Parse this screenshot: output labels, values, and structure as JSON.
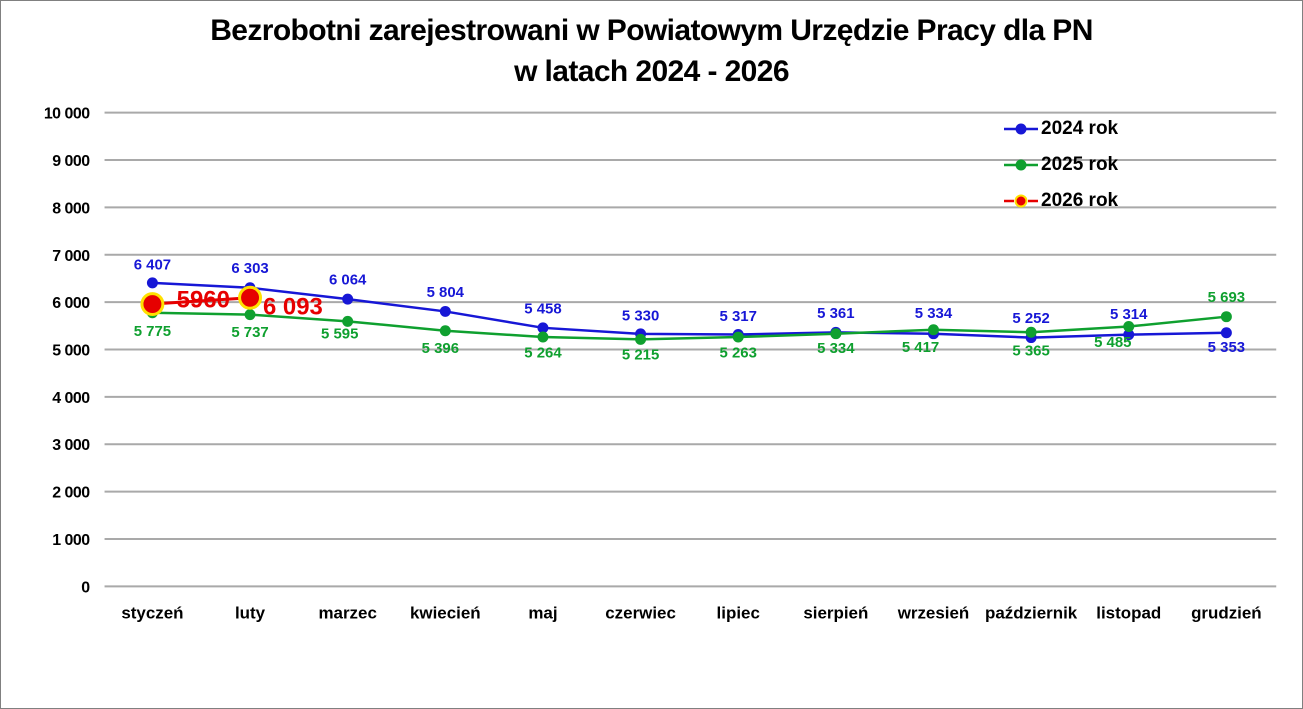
{
  "title": {
    "lines": [
      "Bezrobotni zarejestrowani w Powiatowym Urzędzie Pracy dla PN",
      "w latach 2024 - 2026"
    ]
  },
  "colors": {
    "background": "#ffffff",
    "border": "#808080",
    "gridline": "#a9a9a9",
    "axis_text": "#000000",
    "series_2024": "#1717d6",
    "series_2025": "#0fa02f",
    "series_2026": "#e60000",
    "marker_2026_ring": "#ffe100"
  },
  "chart_data": {
    "type": "line",
    "title": "Bezrobotni zarejestrowani w Powiatowym Urzędzie Pracy dla PN w latach 2024 - 2026",
    "categories": [
      "styczeń",
      "luty",
      "marzec",
      "kwiecień",
      "maj",
      "czerwiec",
      "lipiec",
      "sierpień",
      "wrzesień",
      "październik",
      "listopad",
      "grudzień"
    ],
    "xlabel": "",
    "ylabel": "",
    "grid": true,
    "legend_position": "top-right",
    "y_axis": {
      "min": 0,
      "max": 10000,
      "step": 1000,
      "tick_labels": [
        "0",
        "1 000",
        "2 000",
        "3 000",
        "4 000",
        "5 000",
        "6 000",
        "7 000",
        "8 000",
        "9 000",
        "10 000"
      ]
    },
    "series": [
      {
        "name": "2024 rok",
        "color": "#1717d6",
        "line_width": 2.5,
        "line_style": "solid",
        "legend_style": "solid",
        "marker": {
          "radius": 5.5
        },
        "label_font_size": 15,
        "values": [
          6407,
          6303,
          6064,
          5804,
          5458,
          5330,
          5317,
          5361,
          5334,
          5252,
          5314,
          5353
        ],
        "labels": [
          "6 407",
          "6 303",
          "6 064",
          "5 804",
          "5 458",
          "5 330",
          "5 317",
          "5 361",
          "5 334",
          "5 252",
          "5 314",
          "5 353"
        ],
        "label_offsets": [
          [
            0,
            -19
          ],
          [
            0,
            -20
          ],
          [
            0,
            -20
          ],
          [
            0,
            -20
          ],
          [
            0,
            -20
          ],
          [
            0,
            -19
          ],
          [
            0,
            -19
          ],
          [
            0,
            -20
          ],
          [
            0,
            -21
          ],
          [
            0,
            -20
          ],
          [
            0,
            -21
          ],
          [
            0,
            14
          ]
        ]
      },
      {
        "name": "2025 rok",
        "color": "#0fa02f",
        "line_width": 2.5,
        "line_style": "solid",
        "legend_style": "solid",
        "marker": {
          "radius": 5.5
        },
        "label_font_size": 15,
        "values": [
          5775,
          5737,
          5595,
          5396,
          5264,
          5215,
          5263,
          5334,
          5417,
          5365,
          5485,
          5693
        ],
        "labels": [
          "5 775",
          "5 737",
          "5 595",
          "5 396",
          "5 264",
          "5 215",
          "5 263",
          "5 334",
          "5 417",
          "5 365",
          "5 485",
          "5 693"
        ],
        "label_offsets": [
          [
            0,
            18
          ],
          [
            0,
            17
          ],
          [
            -8,
            12
          ],
          [
            -5,
            17
          ],
          [
            0,
            15
          ],
          [
            0,
            15
          ],
          [
            0,
            15
          ],
          [
            0,
            14
          ],
          [
            -13,
            17
          ],
          [
            0,
            18
          ],
          [
            -16,
            15
          ],
          [
            0,
            -20
          ]
        ]
      },
      {
        "name": "2026 rok",
        "color": "#e60000",
        "line_width": 3,
        "line_style": "solid",
        "legend_style": "dashed",
        "marker": {
          "radius": 10.5,
          "stroke": "#ffe100",
          "stroke_width": 3
        },
        "label_font_size": 24,
        "x_indices": [
          0,
          1
        ],
        "values": [
          5960,
          6093
        ],
        "labels": [
          "5960",
          "6 093"
        ],
        "label_offsets": [
          [
            51,
            -5
          ],
          [
            43,
            8
          ]
        ]
      }
    ]
  }
}
